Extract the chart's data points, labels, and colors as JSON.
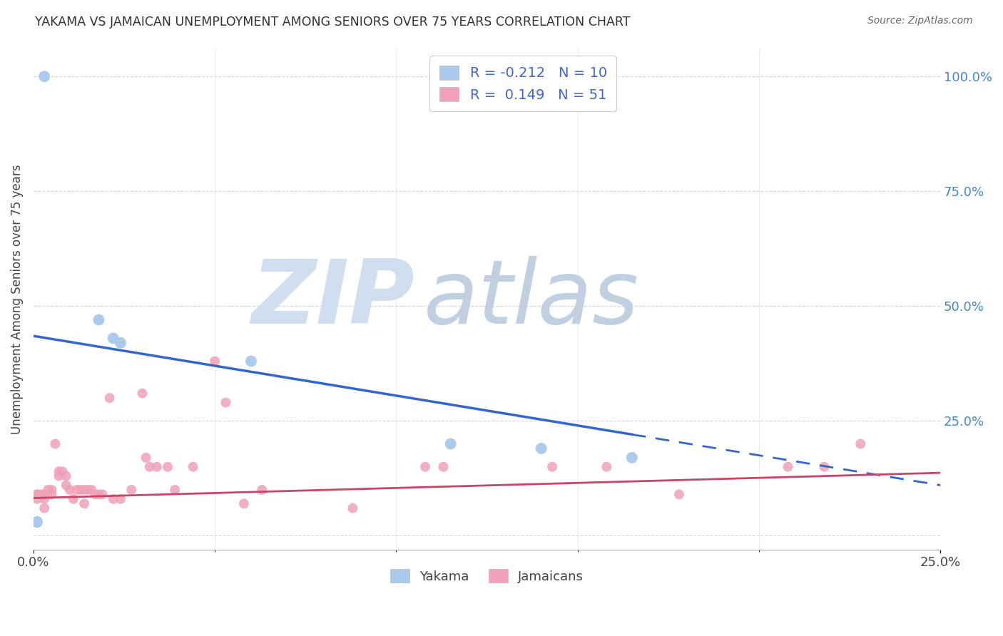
{
  "title": "YAKAMA VS JAMAICAN UNEMPLOYMENT AMONG SENIORS OVER 75 YEARS CORRELATION CHART",
  "source": "Source: ZipAtlas.com",
  "ylabel": "Unemployment Among Seniors over 75 years",
  "xmin": 0.0,
  "xmax": 0.25,
  "ymin": -0.03,
  "ymax": 1.06,
  "right_yticks": [
    0.0,
    0.25,
    0.5,
    0.75,
    1.0
  ],
  "right_yticklabels": [
    "",
    "25.0%",
    "50.0%",
    "75.0%",
    "100.0%"
  ],
  "yakama_points": [
    [
      0.001,
      0.03
    ],
    [
      0.001,
      0.03
    ],
    [
      0.003,
      1.0
    ],
    [
      0.018,
      0.47
    ],
    [
      0.022,
      0.43
    ],
    [
      0.024,
      0.42
    ],
    [
      0.06,
      0.38
    ],
    [
      0.115,
      0.2
    ],
    [
      0.14,
      0.19
    ],
    [
      0.165,
      0.17
    ]
  ],
  "jamaican_points": [
    [
      0.001,
      0.09
    ],
    [
      0.001,
      0.09
    ],
    [
      0.001,
      0.08
    ],
    [
      0.002,
      0.09
    ],
    [
      0.003,
      0.09
    ],
    [
      0.003,
      0.08
    ],
    [
      0.003,
      0.06
    ],
    [
      0.004,
      0.1
    ],
    [
      0.005,
      0.1
    ],
    [
      0.005,
      0.09
    ],
    [
      0.006,
      0.2
    ],
    [
      0.007,
      0.14
    ],
    [
      0.007,
      0.13
    ],
    [
      0.008,
      0.14
    ],
    [
      0.009,
      0.13
    ],
    [
      0.009,
      0.11
    ],
    [
      0.01,
      0.1
    ],
    [
      0.011,
      0.08
    ],
    [
      0.012,
      0.1
    ],
    [
      0.013,
      0.1
    ],
    [
      0.014,
      0.1
    ],
    [
      0.014,
      0.07
    ],
    [
      0.015,
      0.1
    ],
    [
      0.016,
      0.1
    ],
    [
      0.017,
      0.09
    ],
    [
      0.018,
      0.09
    ],
    [
      0.019,
      0.09
    ],
    [
      0.021,
      0.3
    ],
    [
      0.022,
      0.08
    ],
    [
      0.024,
      0.08
    ],
    [
      0.027,
      0.1
    ],
    [
      0.03,
      0.31
    ],
    [
      0.031,
      0.17
    ],
    [
      0.032,
      0.15
    ],
    [
      0.034,
      0.15
    ],
    [
      0.037,
      0.15
    ],
    [
      0.039,
      0.1
    ],
    [
      0.044,
      0.15
    ],
    [
      0.05,
      0.38
    ],
    [
      0.053,
      0.29
    ],
    [
      0.058,
      0.07
    ],
    [
      0.063,
      0.1
    ],
    [
      0.088,
      0.06
    ],
    [
      0.108,
      0.15
    ],
    [
      0.113,
      0.15
    ],
    [
      0.143,
      0.15
    ],
    [
      0.158,
      0.15
    ],
    [
      0.178,
      0.09
    ],
    [
      0.208,
      0.15
    ],
    [
      0.218,
      0.15
    ],
    [
      0.228,
      0.2
    ]
  ],
  "yakama_color": "#a8c8ee",
  "jamaican_color": "#f0a0b8",
  "yakama_line_color": "#3366cc",
  "jamaican_line_color": "#cc4466",
  "yakama_line_b": 0.435,
  "yakama_line_m": -1.3,
  "jamaican_line_b": 0.082,
  "jamaican_line_m": 0.22,
  "background_color": "#ffffff",
  "grid_color": "#cccccc",
  "watermark_zip_color": "#d0dff0",
  "watermark_atlas_color": "#c0d0e0"
}
